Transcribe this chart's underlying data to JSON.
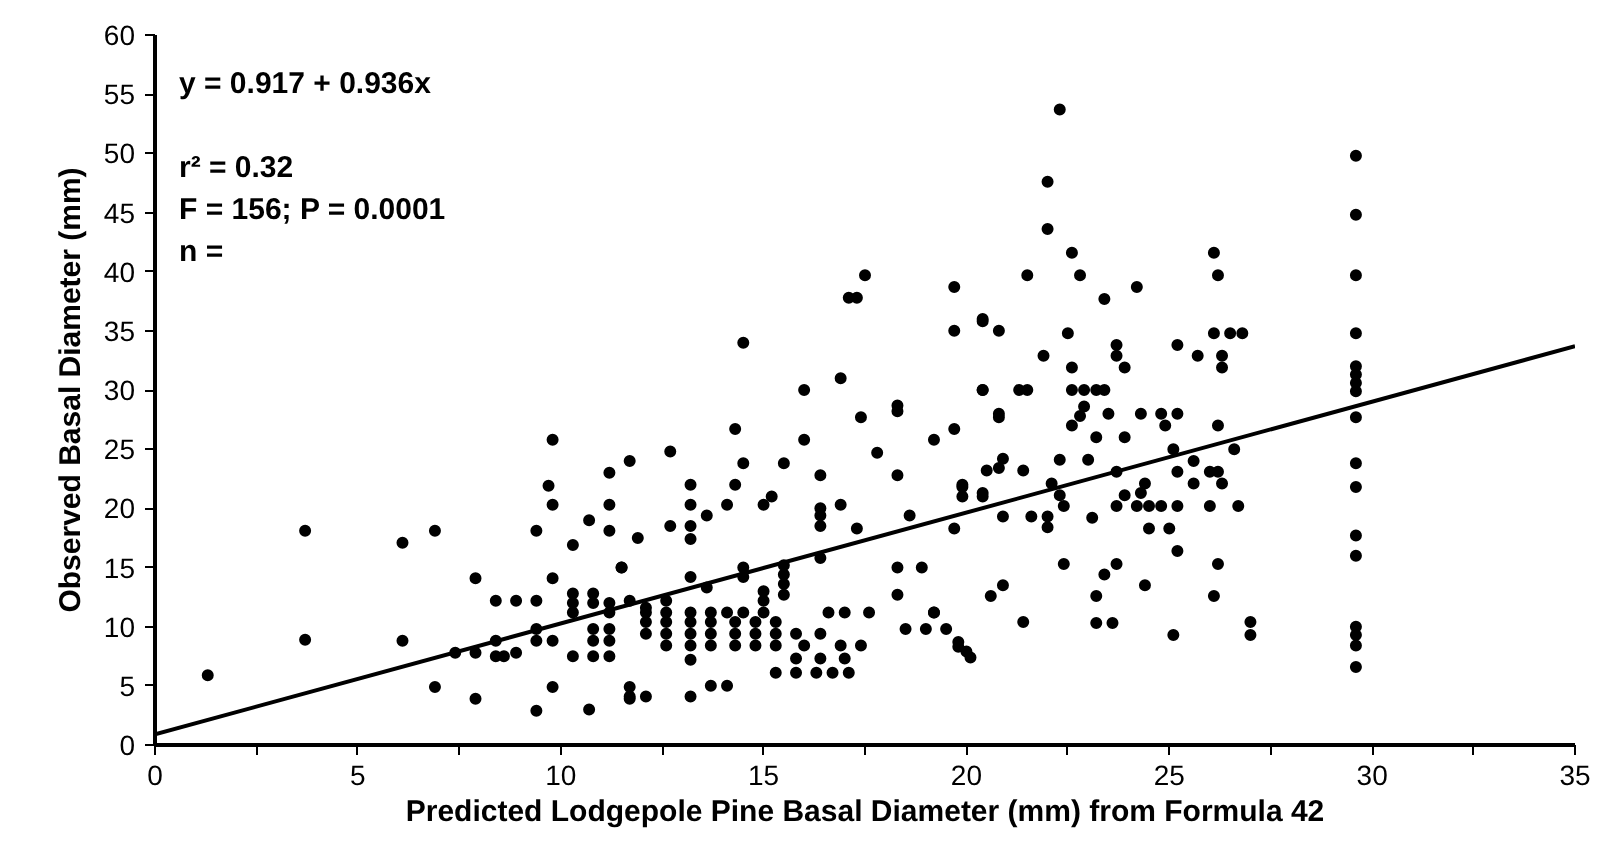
{
  "chart_data": {
    "type": "scatter",
    "xlabel": "Predicted Lodgepole Pine Basal Diameter (mm) from Formula 42",
    "ylabel": "Observed Basal Diameter (mm)",
    "annotations": [
      "y = 0.917 + 0.936x",
      "r² = 0.32",
      "F = 156; P = 0.0001",
      "n ="
    ],
    "xlim": [
      0,
      35
    ],
    "ylim": [
      0,
      60
    ],
    "xticks": [
      0,
      {
        "value": 2.5,
        "label": null
      },
      5,
      {
        "value": 7.5,
        "label": null
      },
      10,
      {
        "value": 12.5,
        "label": null
      },
      15,
      {
        "value": 17.5,
        "label": null
      },
      20,
      {
        "value": 22.5,
        "label": null
      },
      25,
      {
        "value": 27.5,
        "label": null
      },
      30,
      {
        "value": 32.5,
        "label": null
      },
      35
    ],
    "yticks": [
      0,
      5,
      10,
      15,
      20,
      25,
      30,
      35,
      40,
      45,
      50,
      55,
      60
    ],
    "grid": false,
    "marker": "circle",
    "series": [
      {
        "color": "#000000",
        "x": [
          1.3,
          3.7,
          3.7,
          6.1,
          6.1,
          6.9,
          6.9,
          7.4,
          7.9,
          7.9,
          7.9,
          8.4,
          8.9,
          9.4,
          8.4,
          8.6,
          8.4,
          8.9,
          9.4,
          9.4,
          9.4,
          9.4,
          9.8,
          9.7,
          9.8,
          9.8,
          9.8,
          9.8,
          10.3,
          10.3,
          10.3,
          10.3,
          10.8,
          10.8,
          10.3,
          10.8,
          10.8,
          10.8,
          10.7,
          11.2,
          11.2,
          11.2,
          11.7,
          11.5,
          10.7,
          11.2,
          11.2,
          11.2,
          11.7,
          11.7,
          11.2,
          11.2,
          11.7,
          11.9,
          11.5,
          12.1,
          12.6,
          12.7,
          12.7,
          13.2,
          13.2,
          13.2,
          13.2,
          13.2,
          13.6,
          13.6,
          14.1,
          14.3,
          14.3,
          14.5,
          14.5,
          14.5,
          14.5,
          15.0,
          15.0,
          15.0,
          15.2,
          15.5,
          15.5,
          15.5,
          15.5,
          15.5,
          16.0,
          16.0,
          16.4,
          16.4,
          16.4,
          16.4,
          16.4,
          16.9,
          16.9,
          17.3,
          17.3,
          17.5,
          17.1,
          17.4,
          17.8,
          18.3,
          18.3,
          18.3,
          18.3,
          18.3,
          18.6,
          18.9,
          19.2,
          19.2,
          19.7,
          19.7,
          19.7,
          19.7,
          19.9,
          19.9,
          20.4,
          20.4,
          20.4,
          20.8,
          20.8,
          12.1,
          12.6,
          13.2,
          13.7,
          14.1,
          14.5,
          15.0,
          15.3,
          15.8,
          16.3,
          16.7,
          17.1,
          11.7,
          12.1,
          13.2,
          13.2,
          13.7,
          14.1,
          12.1,
          12.6,
          13.2,
          13.7,
          14.3,
          14.8,
          15.3,
          12.1,
          12.6,
          13.2,
          13.7,
          14.3,
          14.8,
          15.3,
          15.8,
          16.4,
          12.6,
          13.2,
          13.7,
          14.3,
          14.8,
          15.3,
          16.0,
          16.9,
          17.4,
          16.6,
          17.0,
          17.6,
          19.2,
          18.5,
          19.0,
          19.5,
          19.8,
          20.0,
          15.8,
          16.4,
          17.0,
          22.3,
          22.0,
          22.0,
          22.6,
          26.1,
          21.5,
          22.8,
          26.2,
          24.2,
          23.4,
          20.4,
          20.8,
          22.5,
          26.1,
          26.5,
          26.8,
          23.7,
          23.7,
          21.9,
          25.2,
          25.7,
          26.3,
          26.3,
          22.6,
          23.9,
          20.4,
          21.3,
          21.5,
          22.6,
          22.9,
          23.2,
          23.4,
          22.9,
          22.8,
          20.8,
          24.3,
          24.8,
          25.2,
          22.6,
          24.9,
          23.5,
          26.2,
          23.2,
          23.9,
          25.1,
          26.6,
          20.9,
          20.5,
          21.4,
          22.3,
          23.0,
          25.2,
          25.6,
          26.0,
          26.2,
          23.7,
          22.1,
          22.3,
          22.4,
          20.4,
          19.9,
          24.4,
          24.3,
          25.6,
          26.3,
          23.9,
          23.7,
          24.2,
          24.5,
          24.8,
          25.2,
          26.0,
          26.7,
          20.9,
          21.6,
          23.1,
          22.0,
          22.0,
          24.5,
          25.0,
          25.2,
          22.4,
          23.7,
          26.2,
          20.9,
          20.6,
          23.4,
          24.4,
          23.2,
          26.1,
          21.4,
          23.2,
          23.6,
          25.1,
          27.0,
          27.0,
          19.8,
          20.1,
          29.6,
          29.6,
          29.6,
          29.6,
          29.6,
          29.6,
          29.6,
          29.6,
          29.6,
          29.6,
          29.6,
          29.6,
          29.6,
          29.6,
          29.6,
          29.6,
          29.6
        ],
        "values": [
          5.9,
          18.1,
          8.9,
          17.1,
          8.8,
          18.1,
          4.9,
          7.8,
          7.8,
          14.1,
          3.9,
          12.2,
          12.2,
          12.2,
          7.5,
          7.5,
          8.8,
          7.8,
          9.8,
          8.8,
          2.9,
          18.1,
          25.8,
          21.9,
          20.3,
          14.1,
          8.8,
          4.9,
          16.9,
          12.8,
          12.0,
          11.2,
          12.8,
          12.0,
          7.5,
          7.5,
          9.8,
          8.8,
          19.0,
          23.0,
          20.3,
          18.1,
          24.0,
          15.0,
          3.0,
          9.8,
          8.8,
          7.5,
          4.9,
          3.9,
          12.0,
          11.2,
          12.2,
          17.5,
          15.0,
          11.6,
          12.2,
          24.8,
          18.5,
          22.0,
          20.3,
          18.5,
          17.4,
          14.2,
          19.4,
          13.3,
          20.3,
          26.7,
          22.0,
          34.0,
          23.8,
          15.0,
          14.2,
          20.3,
          13.0,
          12.2,
          21.0,
          23.8,
          15.2,
          14.4,
          13.6,
          12.7,
          30.0,
          25.8,
          22.8,
          20.0,
          19.4,
          18.5,
          15.8,
          31.0,
          20.3,
          37.8,
          18.3,
          39.7,
          37.8,
          27.7,
          24.7,
          28.7,
          28.2,
          22.8,
          15.0,
          12.7,
          19.4,
          15.0,
          25.8,
          11.2,
          38.7,
          35.0,
          26.7,
          18.3,
          21.8,
          21.0,
          36.0,
          30.0,
          21.0,
          27.7,
          23.4,
          11.2,
          11.2,
          11.2,
          11.2,
          11.2,
          11.2,
          11.2,
          6.1,
          6.1,
          6.1,
          6.1,
          6.1,
          4.1,
          4.1,
          4.1,
          7.2,
          5.0,
          5.0,
          10.4,
          10.4,
          10.4,
          10.4,
          10.4,
          10.4,
          10.4,
          9.4,
          9.4,
          9.4,
          9.4,
          9.4,
          9.4,
          9.4,
          9.4,
          9.4,
          8.4,
          8.4,
          8.4,
          8.4,
          8.4,
          8.4,
          8.4,
          8.4,
          8.4,
          11.2,
          11.2,
          11.2,
          11.2,
          9.8,
          9.8,
          9.8,
          8.7,
          7.9,
          7.3,
          7.3,
          7.3,
          53.7,
          47.6,
          43.6,
          41.6,
          41.6,
          39.7,
          39.7,
          39.7,
          38.7,
          37.7,
          35.8,
          35.0,
          34.8,
          34.8,
          34.8,
          34.8,
          33.8,
          32.9,
          32.9,
          33.8,
          32.9,
          32.9,
          31.9,
          31.9,
          31.9,
          30.0,
          30.0,
          30.0,
          30.0,
          30.0,
          30.0,
          30.0,
          28.6,
          27.8,
          28.0,
          28.0,
          28.0,
          28.0,
          27.0,
          27.0,
          28.0,
          27.0,
          26.0,
          26.0,
          25.0,
          25.0,
          24.2,
          23.2,
          23.2,
          24.1,
          24.1,
          23.1,
          24.0,
          23.1,
          23.1,
          23.1,
          22.1,
          21.1,
          20.2,
          21.3,
          22.0,
          22.1,
          21.3,
          22.1,
          22.1,
          21.1,
          20.2,
          20.2,
          20.2,
          20.2,
          20.2,
          20.2,
          20.2,
          19.3,
          19.3,
          19.2,
          19.3,
          18.4,
          18.3,
          18.3,
          16.4,
          15.3,
          15.3,
          15.3,
          13.5,
          12.6,
          14.4,
          13.5,
          12.6,
          12.6,
          10.4,
          10.3,
          10.3,
          9.3,
          10.4,
          9.3,
          8.3,
          7.4,
          49.8,
          44.8,
          39.7,
          34.8,
          32.0,
          31.3,
          30.6,
          29.9,
          27.7,
          23.8,
          21.8,
          17.7,
          16.0,
          10.0,
          9.3,
          8.4,
          6.6
        ]
      },
      {
        "type": "line",
        "color": "#000000",
        "line_style": "solid",
        "marker": "none",
        "x": [
          0,
          35
        ],
        "values": [
          0.9,
          33.7
        ]
      }
    ]
  }
}
